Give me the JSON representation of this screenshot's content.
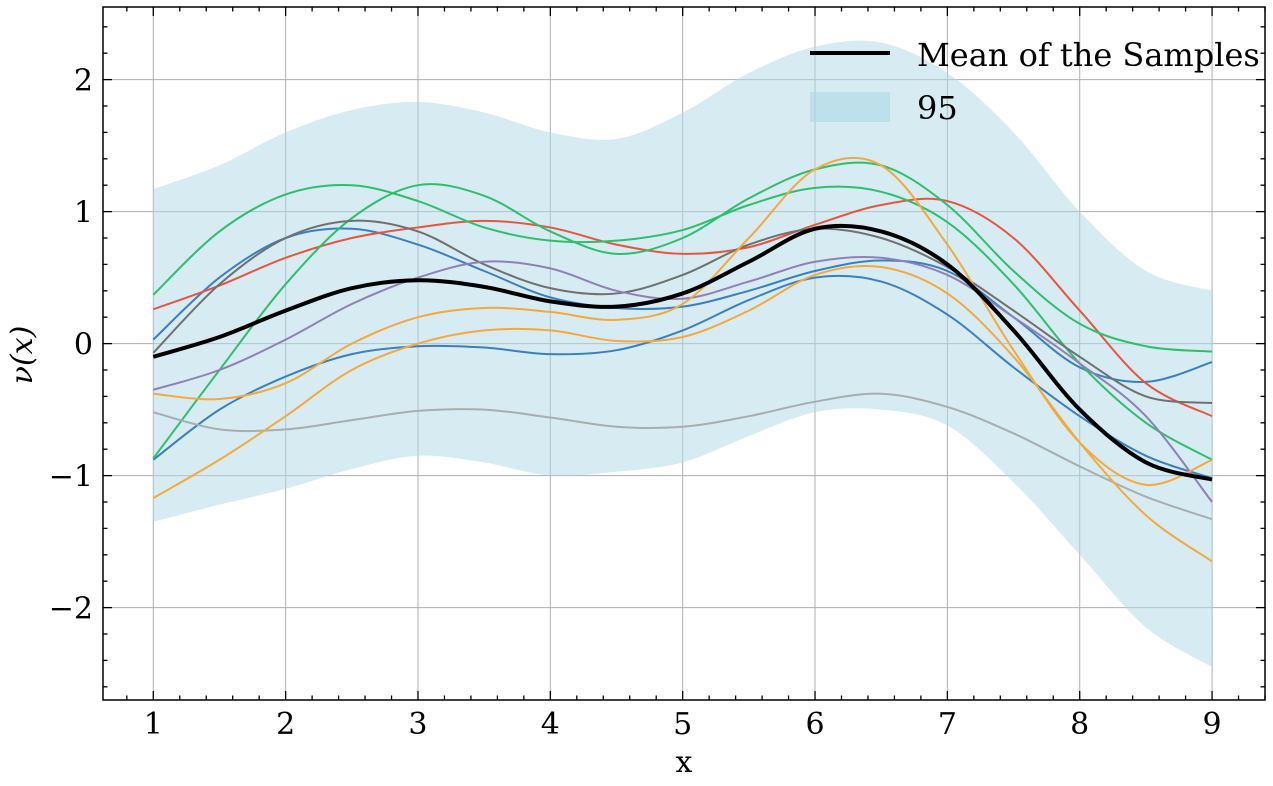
{
  "chart_data": {
    "type": "line",
    "xlabel": "x",
    "ylabel": "ν(x)",
    "xlim": [
      0.62,
      9.4
    ],
    "ylim": [
      -2.7,
      2.55
    ],
    "xticks": [
      1,
      2,
      3,
      4,
      5,
      6,
      7,
      8,
      9
    ],
    "xtick_labels": [
      "1",
      "2",
      "3",
      "4",
      "5",
      "6",
      "7",
      "8",
      "9"
    ],
    "yticks": [
      -2,
      -1,
      0,
      1,
      2
    ],
    "ytick_labels": [
      "−2",
      "−1",
      "0",
      "1",
      "2"
    ],
    "grid": true,
    "legend_position": "top-right",
    "legend": [
      {
        "label": "Mean of the Samples",
        "kind": "line",
        "color": "#000000"
      },
      {
        "label": "95",
        "kind": "band",
        "color": "#add8e6"
      }
    ],
    "band": {
      "name": "95",
      "color": "#add8e6",
      "x": [
        1,
        1.5,
        2,
        2.5,
        3,
        3.5,
        4,
        4.5,
        5,
        5.5,
        6,
        6.5,
        7,
        7.5,
        8,
        8.5,
        9
      ],
      "upper": [
        1.17,
        1.35,
        1.6,
        1.77,
        1.83,
        1.75,
        1.6,
        1.55,
        1.75,
        2.05,
        2.25,
        2.28,
        2.05,
        1.6,
        1.0,
        0.55,
        0.4
      ],
      "lower": [
        -1.35,
        -1.22,
        -1.1,
        -0.95,
        -0.85,
        -0.9,
        -1.0,
        -0.97,
        -0.9,
        -0.7,
        -0.52,
        -0.5,
        -0.62,
        -1.05,
        -1.6,
        -2.15,
        -2.45
      ]
    },
    "series": [
      {
        "name": "sample-blue-1",
        "color": "#3a7fc1",
        "x": [
          1,
          1.5,
          2,
          2.5,
          3,
          3.5,
          4,
          4.5,
          5,
          5.5,
          6,
          6.5,
          7,
          7.5,
          8,
          8.5,
          9
        ],
        "y": [
          0.03,
          0.5,
          0.8,
          0.87,
          0.75,
          0.55,
          0.35,
          0.27,
          0.28,
          0.4,
          0.55,
          0.63,
          0.55,
          0.2,
          -0.18,
          -0.29,
          -0.14
        ]
      },
      {
        "name": "sample-blue-2",
        "color": "#3a7fc1",
        "x": [
          1,
          1.5,
          2,
          2.5,
          3,
          3.5,
          4,
          4.5,
          5,
          5.5,
          6,
          6.5,
          7,
          7.5,
          8,
          8.5,
          9
        ],
        "y": [
          -0.88,
          -0.5,
          -0.25,
          -0.08,
          -0.02,
          -0.03,
          -0.08,
          -0.05,
          0.1,
          0.33,
          0.5,
          0.47,
          0.22,
          -0.18,
          -0.55,
          -0.85,
          -1.02
        ]
      },
      {
        "name": "sample-red",
        "color": "#e8553e",
        "x": [
          1,
          1.5,
          2,
          2.5,
          3,
          3.5,
          4,
          4.5,
          5,
          5.5,
          6,
          6.5,
          7,
          7.5,
          8,
          8.5,
          9
        ],
        "y": [
          0.26,
          0.44,
          0.65,
          0.8,
          0.88,
          0.93,
          0.88,
          0.75,
          0.68,
          0.73,
          0.9,
          1.05,
          1.08,
          0.8,
          0.25,
          -0.3,
          -0.55
        ]
      },
      {
        "name": "sample-green-1",
        "color": "#2dbf6b",
        "x": [
          1,
          1.5,
          2,
          2.5,
          3,
          3.5,
          4,
          4.5,
          5,
          5.5,
          6,
          6.5,
          7,
          7.5,
          8,
          8.5,
          9
        ],
        "y": [
          0.37,
          0.85,
          1.13,
          1.2,
          1.08,
          0.88,
          0.78,
          0.78,
          0.86,
          1.05,
          1.18,
          1.15,
          0.92,
          0.45,
          -0.15,
          -0.6,
          -0.88
        ]
      },
      {
        "name": "sample-green-2",
        "color": "#2dbf6b",
        "x": [
          1,
          1.5,
          2,
          2.5,
          3,
          3.5,
          4,
          4.5,
          5,
          5.5,
          6,
          6.5,
          7,
          7.5,
          8,
          8.5,
          9
        ],
        "y": [
          -0.87,
          -0.2,
          0.45,
          0.95,
          1.2,
          1.12,
          0.85,
          0.68,
          0.8,
          1.1,
          1.32,
          1.35,
          1.05,
          0.55,
          0.15,
          -0.02,
          -0.06
        ]
      },
      {
        "name": "sample-gray-dark",
        "color": "#707070",
        "x": [
          1,
          1.5,
          2,
          2.5,
          3,
          3.5,
          4,
          4.5,
          5,
          5.5,
          6,
          6.5,
          7,
          7.5,
          8,
          8.5,
          9
        ],
        "y": [
          -0.07,
          0.45,
          0.8,
          0.93,
          0.85,
          0.6,
          0.42,
          0.38,
          0.52,
          0.75,
          0.87,
          0.8,
          0.58,
          0.25,
          -0.1,
          -0.4,
          -0.45
        ]
      },
      {
        "name": "sample-gray-light",
        "color": "#a8aeb0",
        "x": [
          1,
          1.5,
          2,
          2.5,
          3,
          3.5,
          4,
          4.5,
          5,
          5.5,
          6,
          6.5,
          7,
          7.5,
          8,
          8.5,
          9
        ],
        "y": [
          -0.52,
          -0.65,
          -0.65,
          -0.58,
          -0.51,
          -0.5,
          -0.56,
          -0.63,
          -0.63,
          -0.55,
          -0.44,
          -0.38,
          -0.48,
          -0.68,
          -0.93,
          -1.16,
          -1.33
        ]
      },
      {
        "name": "sample-purple",
        "color": "#9080b6",
        "x": [
          1,
          1.5,
          2,
          2.5,
          3,
          3.5,
          4,
          4.5,
          5,
          5.5,
          6,
          6.5,
          7,
          7.5,
          8,
          8.5,
          9
        ],
        "y": [
          -0.35,
          -0.2,
          0.03,
          0.3,
          0.5,
          0.62,
          0.57,
          0.4,
          0.34,
          0.47,
          0.62,
          0.65,
          0.52,
          0.2,
          -0.15,
          -0.55,
          -1.2
        ]
      },
      {
        "name": "sample-orange-1",
        "color": "#f4a93a",
        "x": [
          1,
          1.5,
          2,
          2.5,
          3,
          3.5,
          4,
          4.5,
          5,
          5.5,
          6,
          6.5,
          7,
          7.5,
          8,
          8.5,
          9
        ],
        "y": [
          -0.38,
          -0.42,
          -0.3,
          0.0,
          0.2,
          0.27,
          0.24,
          0.18,
          0.3,
          0.8,
          1.32,
          1.35,
          0.75,
          -0.05,
          -0.75,
          -1.07,
          -0.88
        ]
      },
      {
        "name": "sample-orange-2",
        "color": "#f4a93a",
        "x": [
          1,
          1.5,
          2,
          2.5,
          3,
          3.5,
          4,
          4.5,
          5,
          5.5,
          6,
          6.5,
          7,
          7.5,
          8,
          8.5,
          9
        ],
        "y": [
          -1.17,
          -0.88,
          -0.55,
          -0.2,
          0.0,
          0.1,
          0.1,
          0.02,
          0.05,
          0.25,
          0.52,
          0.58,
          0.38,
          -0.1,
          -0.75,
          -1.3,
          -1.65
        ]
      },
      {
        "name": "mean-of-samples",
        "color": "#000000",
        "width": 4,
        "x": [
          1,
          1.5,
          2,
          2.5,
          3,
          3.5,
          4,
          4.5,
          5,
          5.5,
          6,
          6.5,
          7,
          7.5,
          8,
          8.5,
          9
        ],
        "y": [
          -0.1,
          0.05,
          0.25,
          0.42,
          0.48,
          0.43,
          0.32,
          0.28,
          0.38,
          0.62,
          0.87,
          0.85,
          0.6,
          0.1,
          -0.5,
          -0.9,
          -1.03
        ]
      }
    ]
  }
}
